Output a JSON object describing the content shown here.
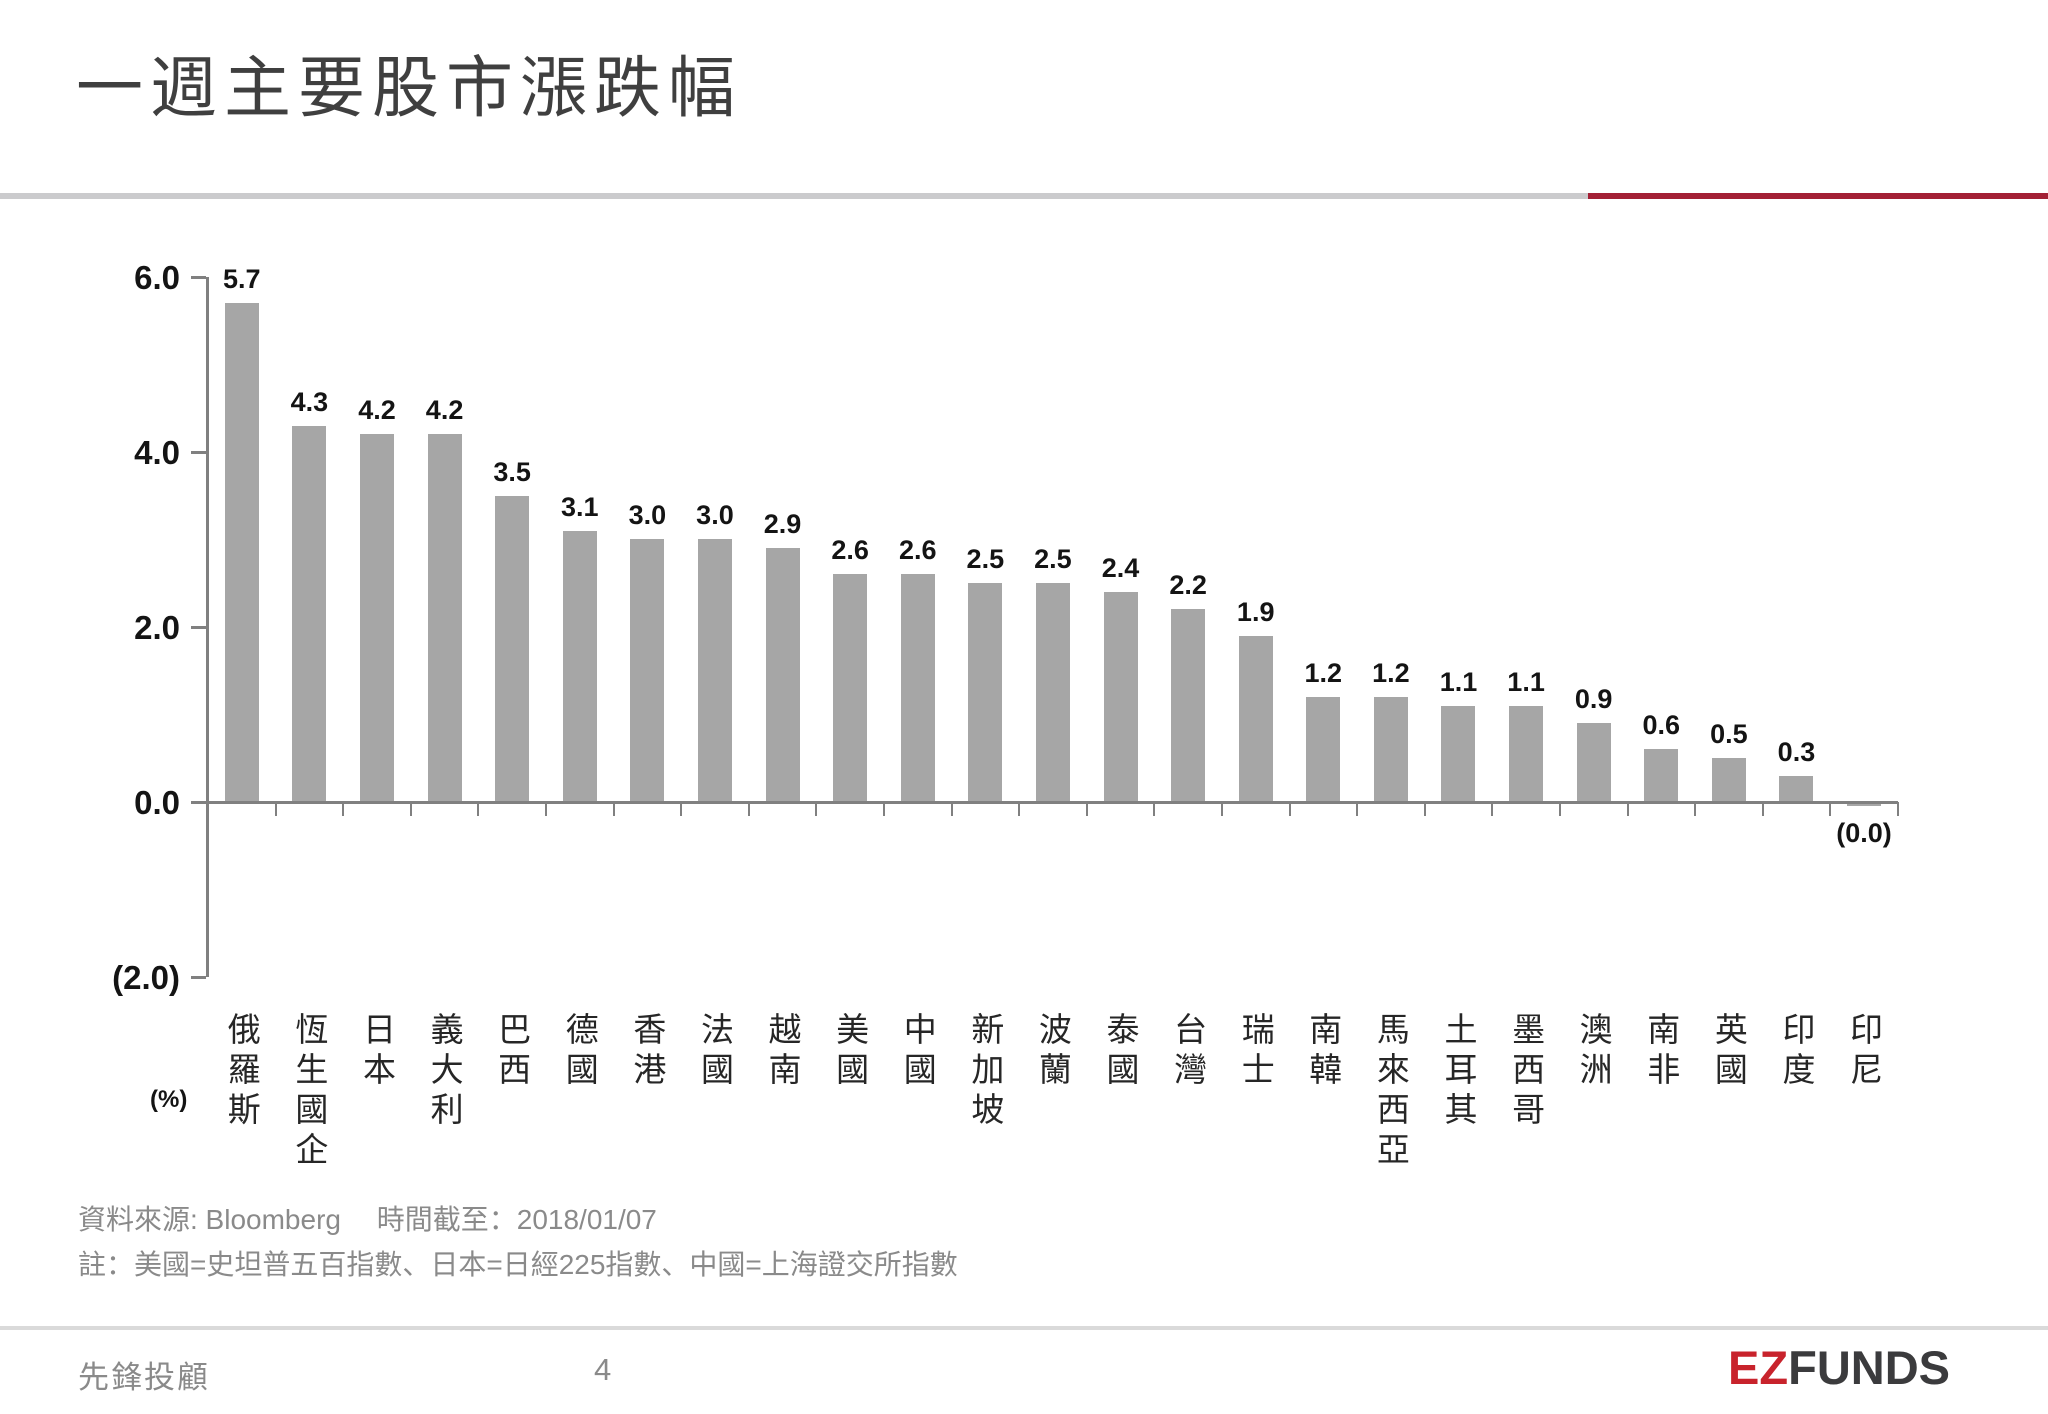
{
  "slide": {
    "title": "一週主要股市漲跌幅",
    "source_line1": "資料來源: Bloomberg　 時間截至：2018/01/07",
    "source_line2": "註：美國=史坦普五百指數、日本=日經225指數、中國=上海證交所指數",
    "footer": {
      "company": "先鋒投顧",
      "page_number": "4"
    },
    "logo": {
      "part1": "EZ",
      "part2": "FUNDS"
    }
  },
  "colors": {
    "bar": "#A6A6A6",
    "axis": "#808080",
    "accent_red": "#A32035",
    "top_divider_gray": "#CBCBCD",
    "footer_divider": "#DADADA",
    "logo_red": "#C8232C",
    "logo_dark": "#3B3B3D",
    "muted_text": "#8A8A8A",
    "title_text": "#3F3F3F",
    "value_text": "#141414"
  },
  "chart_data": {
    "type": "bar",
    "title": "一週主要股市漲跌幅",
    "unit_label": "(%)",
    "categories": [
      "俄羅斯",
      "恆生國企",
      "日本",
      "義大利",
      "巴西",
      "德國",
      "香港",
      "法國",
      "越南",
      "美國",
      "中國",
      "新加坡",
      "波蘭",
      "泰國",
      "台灣",
      "瑞士",
      "南韓",
      "馬來西亞",
      "土耳其",
      "墨西哥",
      "澳洲",
      "南非",
      "英國",
      "印度",
      "印尼"
    ],
    "values": [
      5.7,
      4.3,
      4.2,
      4.2,
      3.5,
      3.1,
      3.0,
      3.0,
      2.9,
      2.6,
      2.6,
      2.5,
      2.5,
      2.4,
      2.2,
      1.9,
      1.2,
      1.2,
      1.1,
      1.1,
      0.9,
      0.6,
      0.5,
      0.3,
      -0.04
    ],
    "value_labels": [
      "5.7",
      "4.3",
      "4.2",
      "4.2",
      "3.5",
      "3.1",
      "3.0",
      "3.0",
      "2.9",
      "2.6",
      "2.6",
      "2.5",
      "2.5",
      "2.4",
      "2.2",
      "1.9",
      "1.2",
      "1.2",
      "1.1",
      "1.1",
      "0.9",
      "0.6",
      "0.5",
      "0.3",
      "(0.0)"
    ],
    "y_ticks": [
      {
        "label": "6.0",
        "value": 6
      },
      {
        "label": "4.0",
        "value": 4
      },
      {
        "label": "2.0",
        "value": 2
      },
      {
        "label": "0.0",
        "value": 0
      },
      {
        "label": "(2.0)",
        "value": -2
      }
    ],
    "ylim": [
      -2,
      6
    ],
    "bar_color": "#A6A6A6",
    "grid": false,
    "legend": false
  }
}
